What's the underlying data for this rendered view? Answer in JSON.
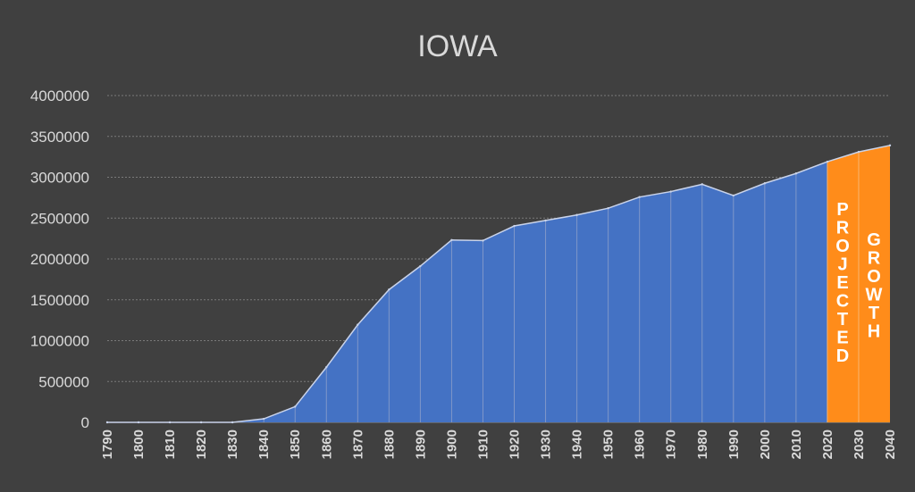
{
  "chart_data": {
    "type": "area",
    "title": "IOWA",
    "categories": [
      "1790",
      "1800",
      "1810",
      "1820",
      "1830",
      "1840",
      "1850",
      "1860",
      "1870",
      "1880",
      "1890",
      "1900",
      "1910",
      "1920",
      "1930",
      "1940",
      "1950",
      "1960",
      "1970",
      "1980",
      "1990",
      "2000",
      "2010",
      "2020",
      "2030",
      "2040"
    ],
    "values": [
      0,
      0,
      0,
      0,
      0,
      43112,
      192214,
      674913,
      1194020,
      1624615,
      1912297,
      2231853,
      2224771,
      2404021,
      2470939,
      2538268,
      2621073,
      2757537,
      2824376,
      2913808,
      2776755,
      2926324,
      3046355,
      3190369,
      3310000,
      3390000
    ],
    "projected_from": "2020",
    "ylim": [
      0,
      4000000
    ],
    "yticks": [
      "0",
      "500000",
      "1000000",
      "1500000",
      "2000000",
      "2500000",
      "3000000",
      "3500000",
      "4000000"
    ],
    "grid": true,
    "annotations": [
      "PROJECTED",
      "GROWTH"
    ],
    "colors": {
      "historical": "#4472c4",
      "projected": "#ff8c1a",
      "line": "#c9d3ea",
      "background": "#404040"
    }
  }
}
